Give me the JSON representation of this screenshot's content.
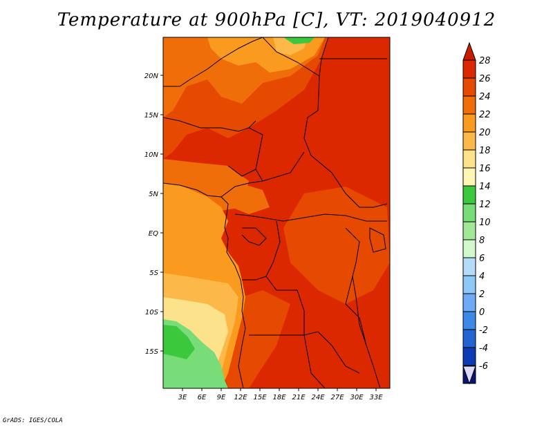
{
  "title": "Temperature at 900hPa [C], VT: 2019040912",
  "credit": "GrADS: IGES/COLA",
  "map": {
    "lat_ticks": [
      "20N",
      "15N",
      "10N",
      "5N",
      "EQ",
      "5S",
      "10S",
      "15S"
    ],
    "lon_ticks": [
      "3E",
      "6E",
      "9E",
      "12E",
      "15E",
      "18E",
      "21E",
      "24E",
      "27E",
      "30E",
      "33E"
    ]
  },
  "colorbar": {
    "labels": [
      "28",
      "26",
      "24",
      "22",
      "20",
      "18",
      "16",
      "14",
      "12",
      "10",
      "8",
      "6",
      "4",
      "2",
      "0",
      "-2",
      "-4",
      "-6"
    ],
    "colors": [
      "#dc2800",
      "#e64a00",
      "#f06e0a",
      "#fa9a1e",
      "#fcb848",
      "#fde28c",
      "#fff6b4",
      "#3cc83c",
      "#78dc78",
      "#a0e896",
      "#d0f8cc",
      "#b4dcfa",
      "#8cc8f8",
      "#6eaaf5",
      "#3c8ae6",
      "#2364d2",
      "#0c3cb4",
      "#0a1478"
    ],
    "upper_arrow_color": "#c81e00",
    "lower_arrow_color": "#dcdcfa"
  }
}
